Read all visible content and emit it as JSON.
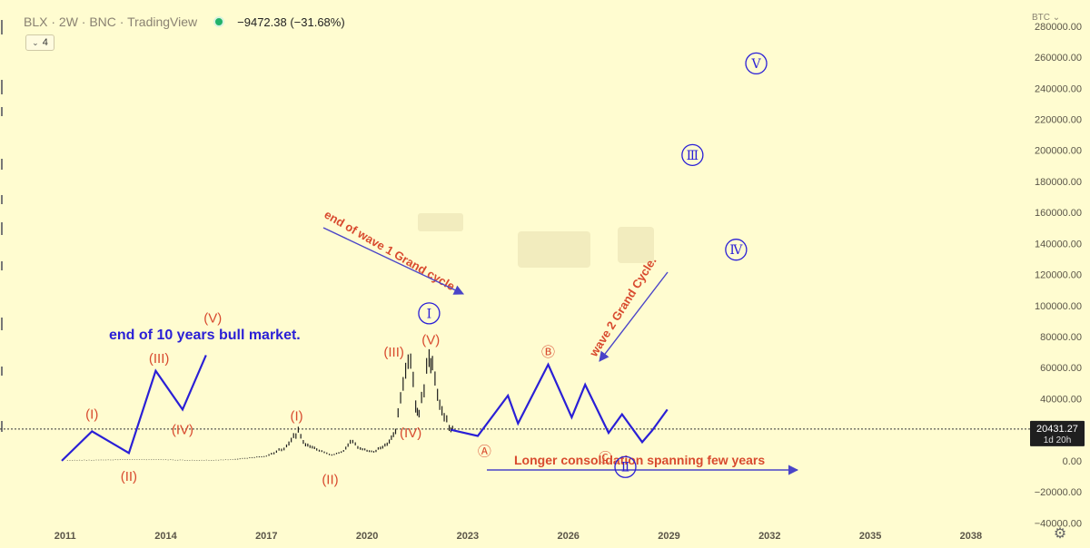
{
  "header": {
    "symbol": "BLX · 2W · BNC · TradingView",
    "change": "−9472.38 (−31.68%)",
    "indicator_count": "4",
    "currency": "BTC"
  },
  "price_tag": {
    "value": "20431.27",
    "countdown": "1d 20h"
  },
  "colors": {
    "background": "#fffcd0",
    "wave_line": "#2a1fd6",
    "wave_label": "#d84a2e",
    "candles": "#1d1d1d",
    "price_tag_bg": "#1f1f1f",
    "arrow": "#4a44c8"
  },
  "annotations": {
    "bull_market": "end of 10 years bull market.",
    "wave1_grand": "end of wave 1 Grand cycle",
    "wave2_grand": "wave 2 Grand Cycle.",
    "consolidation": "Longer consolidation spanning few years"
  },
  "chart_data": {
    "type": "line",
    "title": "",
    "xlabel": "",
    "ylabel": "",
    "x_ticks": [
      "2011",
      "2014",
      "2017",
      "2020",
      "2023",
      "2026",
      "2029",
      "2032",
      "2035",
      "2038"
    ],
    "y_ticks": [
      "280000.00",
      "260000.00",
      "240000.00",
      "220000.00",
      "200000.00",
      "180000.00",
      "160000.00",
      "140000.00",
      "120000.00",
      "100000.00",
      "80000.00",
      "60000.00",
      "40000.00",
      "20000.00",
      "0.00",
      "−20000.00",
      "−40000.00"
    ],
    "xlim": [
      2009.6,
      2039.6
    ],
    "ylim": [
      -48000,
      284000
    ],
    "grid": false,
    "current_price": 20431.27,
    "series": [
      {
        "kind": "candles-approx",
        "points": [
          [
            2011.0,
            300
          ],
          [
            2012.0,
            500
          ],
          [
            2013.0,
            800
          ],
          [
            2014.0,
            600
          ],
          [
            2015.0,
            300
          ],
          [
            2016.0,
            700
          ],
          [
            2017.0,
            3000
          ],
          [
            2017.6,
            9000
          ],
          [
            2017.95,
            19500
          ],
          [
            2018.1,
            12000
          ],
          [
            2018.5,
            7000
          ],
          [
            2018.95,
            3500
          ],
          [
            2019.3,
            6000
          ],
          [
            2019.5,
            13000
          ],
          [
            2019.8,
            8000
          ],
          [
            2020.2,
            5500
          ],
          [
            2020.6,
            11000
          ],
          [
            2020.85,
            19000
          ],
          [
            2021.0,
            38000
          ],
          [
            2021.15,
            58000
          ],
          [
            2021.3,
            64000
          ],
          [
            2021.45,
            35000
          ],
          [
            2021.55,
            32000
          ],
          [
            2021.7,
            48000
          ],
          [
            2021.85,
            67000
          ],
          [
            2021.95,
            60000
          ],
          [
            2022.1,
            42000
          ],
          [
            2022.3,
            30000
          ],
          [
            2022.45,
            21000
          ],
          [
            2022.55,
            20431
          ]
        ]
      },
      {
        "kind": "wave-projection-cycle1",
        "points": [
          [
            2010.9,
            0
          ],
          [
            2011.8,
            19000
          ],
          [
            2012.9,
            5000
          ],
          [
            2013.7,
            58000
          ],
          [
            2014.5,
            33000
          ],
          [
            2015.2,
            68000
          ]
        ]
      },
      {
        "kind": "wave-projection-cycle2",
        "points": [
          [
            2022.5,
            20000
          ],
          [
            2023.3,
            16000
          ],
          [
            2024.2,
            42000
          ],
          [
            2024.5,
            24000
          ],
          [
            2025.4,
            62000
          ],
          [
            2026.1,
            28000
          ],
          [
            2026.5,
            49000
          ],
          [
            2027.2,
            18000
          ],
          [
            2027.6,
            30000
          ],
          [
            2028.2,
            12000
          ],
          [
            2028.5,
            19500
          ],
          [
            2028.95,
            33000
          ]
        ]
      }
    ],
    "labels": [
      {
        "text": "(I)",
        "x": 2011.8,
        "y": 30000,
        "style": "red"
      },
      {
        "text": "(II)",
        "x": 2012.9,
        "y": -10000,
        "style": "red"
      },
      {
        "text": "(III)",
        "x": 2013.8,
        "y": 66000,
        "style": "red"
      },
      {
        "text": "(IV)",
        "x": 2014.5,
        "y": 20000,
        "style": "red"
      },
      {
        "text": "(V)",
        "x": 2015.4,
        "y": 92000,
        "style": "red"
      },
      {
        "text": "(I)",
        "x": 2017.9,
        "y": 29000,
        "style": "red"
      },
      {
        "text": "(II)",
        "x": 2018.9,
        "y": -12000,
        "style": "red"
      },
      {
        "text": "(III)",
        "x": 2020.8,
        "y": 70000,
        "style": "red"
      },
      {
        "text": "(IV)",
        "x": 2021.3,
        "y": 18000,
        "style": "red"
      },
      {
        "text": "(V)",
        "x": 2021.9,
        "y": 78000,
        "style": "red"
      },
      {
        "text": "Ⓐ",
        "x": 2023.5,
        "y": 6000,
        "style": "red"
      },
      {
        "text": "Ⓑ",
        "x": 2025.4,
        "y": 70000,
        "style": "red"
      },
      {
        "text": "Ⓒ",
        "x": 2027.1,
        "y": 2000,
        "style": "red"
      },
      {
        "text": "Ⅰ",
        "x": 2021.85,
        "y": 95000,
        "style": "circle"
      },
      {
        "text": "Ⅱ",
        "x": 2027.7,
        "y": -4000,
        "style": "circle"
      },
      {
        "text": "Ⅲ",
        "x": 2029.7,
        "y": 197000,
        "style": "circle"
      },
      {
        "text": "Ⅳ",
        "x": 2031.0,
        "y": 136000,
        "style": "circle"
      },
      {
        "text": "Ⅴ",
        "x": 2031.6,
        "y": 256000,
        "style": "circle"
      }
    ]
  }
}
